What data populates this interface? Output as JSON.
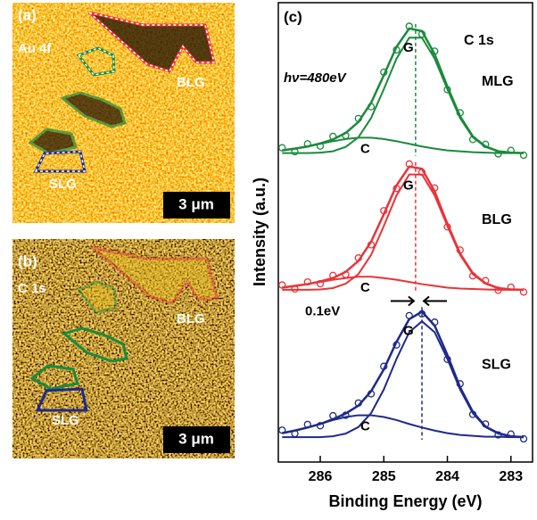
{
  "panels": [
    {
      "label": "(a)",
      "element": "Au 4f",
      "region_labels": [
        "BLG",
        "SLG"
      ],
      "scale_bar": "3 μm"
    },
    {
      "label": "(b)",
      "element": "C 1s",
      "region_labels": [
        "BLG",
        "SLG"
      ],
      "scale_bar": "3 μm"
    }
  ],
  "chart_data": {
    "type": "line",
    "panel_label": "(c)",
    "title": "C 1s",
    "subtitle": "hν=480eV",
    "x_label": "Binding Energy (eV)",
    "y_label": "Intensity (a.u.)",
    "xlim": [
      286.66,
      282.66
    ],
    "xticks": [
      286,
      285,
      284,
      283
    ],
    "ylim": [
      -3.7,
      101.4
    ],
    "x": [
      286.6,
      286.4,
      286.2,
      286.0,
      285.8,
      285.6,
      285.4,
      285.2,
      285.0,
      284.8,
      284.6,
      284.4,
      284.2,
      284.0,
      283.8,
      283.6,
      283.4,
      283.2,
      283.0,
      282.8
    ],
    "series": [
      {
        "name": "MLG",
        "color": "#1a8a3c",
        "peak_label": "G",
        "shoulder_label": "C",
        "peak_position": 284.5,
        "values": [
          68.2,
          67.3,
          69.1,
          68.6,
          70.8,
          71.0,
          74.9,
          77.6,
          85.5,
          90.6,
          96.0,
          94.2,
          90.3,
          81.5,
          76.2,
          70.1,
          69.0,
          66.8,
          67.6,
          66.5
        ],
        "fit": [
          67.6,
          68.0,
          68.5,
          69.2,
          70.1,
          71.6,
          74.1,
          78.5,
          84.8,
          91.3,
          95.5,
          94.9,
          89.6,
          82.2,
          75.4,
          70.8,
          68.5,
          67.4,
          67.1,
          67.0
        ],
        "g_component": [
          67.0,
          67.0,
          67.0,
          67.1,
          67.4,
          68.4,
          70.6,
          75.0,
          81.6,
          88.6,
          93.4,
          93.4,
          88.6,
          81.6,
          75.0,
          70.6,
          68.4,
          67.4,
          67.1,
          67.0
        ],
        "c_component": [
          67.6,
          68.0,
          68.5,
          69.1,
          69.7,
          70.2,
          70.5,
          70.5,
          70.2,
          69.7,
          69.1,
          68.5,
          68.0,
          67.6,
          67.4,
          67.2,
          67.1,
          67.0,
          67.0,
          67.0
        ]
      },
      {
        "name": "BLG",
        "color": "#e8343a",
        "peak_label": "G",
        "shoulder_label": "C",
        "peak_position": 284.5,
        "values": [
          36.8,
          35.9,
          37.5,
          37.1,
          39.0,
          39.2,
          43.0,
          46.0,
          53.8,
          58.9,
          64.5,
          62.6,
          59.0,
          50.1,
          44.8,
          38.9,
          37.8,
          35.6,
          36.3,
          35.2
        ],
        "fit": [
          36.2,
          36.6,
          37.0,
          37.6,
          38.4,
          39.8,
          42.3,
          46.7,
          53.0,
          59.6,
          63.9,
          63.4,
          58.2,
          50.8,
          44.0,
          39.5,
          37.2,
          36.1,
          35.8,
          35.7
        ],
        "g_component": [
          35.7,
          35.7,
          35.7,
          35.8,
          36.1,
          37.1,
          39.3,
          43.7,
          50.3,
          57.3,
          62.1,
          62.1,
          57.3,
          50.3,
          43.7,
          39.3,
          37.1,
          36.1,
          35.8,
          35.7
        ],
        "c_component": [
          36.2,
          36.6,
          37.0,
          37.5,
          38.0,
          38.4,
          38.7,
          38.7,
          38.4,
          38.0,
          37.5,
          37.0,
          36.6,
          36.2,
          36.0,
          35.9,
          35.8,
          35.7,
          35.7,
          35.7
        ]
      },
      {
        "name": "SLG",
        "color": "#1e2a8a",
        "peak_label": "G",
        "shoulder_label": "C",
        "peak_position": 284.4,
        "values": [
          3.6,
          2.8,
          4.9,
          4.6,
          6.9,
          7.0,
          9.8,
          11.9,
          18.2,
          23.1,
          29.8,
          30.2,
          28.3,
          19.8,
          14.2,
          7.2,
          5.0,
          2.5,
          2.7,
          1.6
        ],
        "fit": [
          2.9,
          3.5,
          4.2,
          5.0,
          6.1,
          7.4,
          9.2,
          12.5,
          17.5,
          23.8,
          29.0,
          30.7,
          27.5,
          20.8,
          13.4,
          7.8,
          4.4,
          2.9,
          2.2,
          2.0
        ],
        "g_component": [
          2.0,
          2.0,
          2.0,
          2.0,
          2.2,
          2.8,
          4.3,
          7.5,
          12.9,
          19.9,
          26.0,
          28.5,
          26.0,
          19.9,
          12.9,
          7.5,
          4.3,
          2.8,
          2.2,
          2.0
        ],
        "c_component": [
          2.9,
          3.5,
          4.2,
          5.0,
          5.9,
          6.6,
          7.0,
          7.0,
          6.6,
          5.9,
          5.0,
          4.2,
          3.5,
          2.9,
          2.5,
          2.3,
          2.1,
          2.1,
          2.0,
          2.0
        ]
      }
    ],
    "shift_label": "0.1eV"
  }
}
